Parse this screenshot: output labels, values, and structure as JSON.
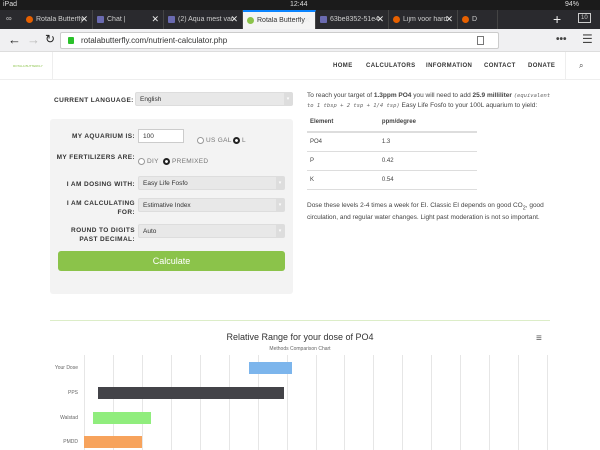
{
  "status": {
    "device": "iPad",
    "time": "12:44",
    "battery": "94%"
  },
  "tabs": [
    {
      "label": "Rotala Butterfly | F",
      "active": false
    },
    {
      "label": "Chat |",
      "active": false
    },
    {
      "label": "(2) Aqua mest van",
      "active": false
    },
    {
      "label": "Rotala Butterfly | R",
      "active": true
    },
    {
      "label": "63be8352-51e4-4",
      "active": false
    },
    {
      "label": "Lijm voor hard PVC",
      "active": false
    },
    {
      "label": "D",
      "active": false
    }
  ],
  "tab_count": "10",
  "url": "rotalabutterfly.com/nutrient-calculator.php",
  "site": {
    "logo": "ROTALA BUTTERFLY",
    "nav": [
      "HOME",
      "CALCULATORS",
      "INFORMATION",
      "CONTACT",
      "DONATE"
    ]
  },
  "form": {
    "language_label": "CURRENT LANGUAGE:",
    "language": "English",
    "aquarium_label": "MY AQUARIUM IS:",
    "aquarium_value": "100",
    "unit_options": [
      "US GAL",
      "L"
    ],
    "unit_selected": "L",
    "fert_label": "MY FERTILIZERS ARE:",
    "fert_options": [
      "DIY",
      "PREMIXED"
    ],
    "fert_selected": "PREMIXED",
    "dosing_label": "I AM DOSING WITH:",
    "dosing": "Easy Life Fosfo",
    "method_label": "I AM CALCULATING FOR:",
    "method": "Estimative Index",
    "round_label": "ROUND TO DIGITS PAST DECIMAL:",
    "round": "Auto",
    "calculate": "Calculate"
  },
  "results": {
    "intro_1": "To reach your target of ",
    "target": "1.3ppm PO4",
    "intro_2": " you will need to add ",
    "amount": "25.9 milliliter",
    "equiv": "(equivalent to 1 tbsp + 2 tsp + 1/4 tsp)",
    "intro_3": " Easy Life Fosfo to your 100L aquarium to yield:",
    "headers": [
      "Element",
      "ppm/degree"
    ],
    "rows": [
      [
        "PO4",
        "1.3"
      ],
      [
        "P",
        "0.42"
      ],
      [
        "K",
        "0.54"
      ]
    ],
    "note_1": "Dose these levels 2-4 times a week for EI. Classic EI depends on good CO",
    "note_sub": "2",
    "note_2": ", good circulation, and regular water changes. Light past moderation is not so important."
  },
  "chart_data": {
    "type": "bar",
    "orientation": "horizontal-range",
    "title": "Relative Range for your dose of PO4",
    "subtitle": "Methods Comparison Chart",
    "categories": [
      "Your Dose",
      "PPS",
      "Walstad",
      "PMDD"
    ],
    "ranges": [
      [
        5.7,
        7.2
      ],
      [
        0.5,
        6.9
      ],
      [
        0.3,
        2.3
      ],
      [
        0,
        2.0
      ]
    ],
    "colors": [
      "#7cb5ec",
      "#434348",
      "#90ed7d",
      "#f7a35c"
    ],
    "xlim": [
      0,
      16
    ],
    "grid": true
  }
}
